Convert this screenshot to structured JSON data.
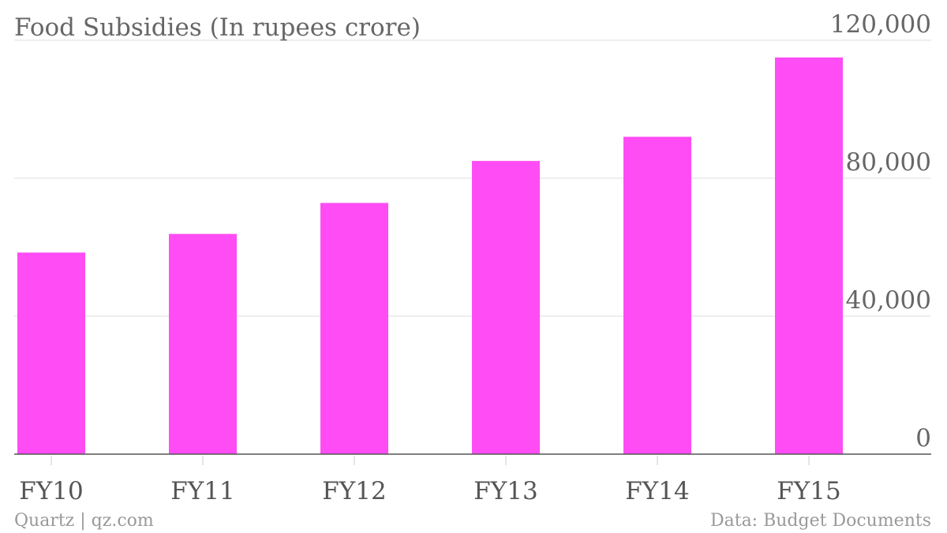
{
  "chart_data": {
    "type": "bar",
    "title": "Food Subsidies (In rupees crore)",
    "categories": [
      "FY10",
      "FY11",
      "FY12",
      "FY13",
      "FY14",
      "FY15"
    ],
    "values": [
      58443,
      63844,
      72822,
      85000,
      92000,
      115000
    ],
    "ylim": [
      0,
      120000
    ],
    "yticks": [
      "0",
      "40,000",
      "80,000",
      "120,000"
    ],
    "ytick_values": [
      0,
      40000,
      80000,
      120000
    ],
    "grid": true,
    "bar_color": "#ff4cf4"
  },
  "footer": {
    "left": "Quartz | qz.com",
    "right": "Data: Budget Documents"
  }
}
